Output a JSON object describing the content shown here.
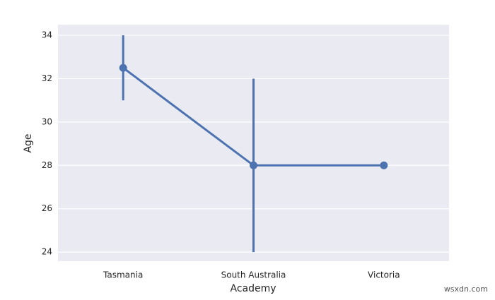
{
  "chart_data": {
    "type": "pointplot",
    "x_label": "Academy",
    "y_label": "Age",
    "categories": [
      "Tasmania",
      "South Australia",
      "Victoria"
    ],
    "values": [
      32.5,
      28,
      28
    ],
    "errors": [
      1.5,
      4,
      null
    ],
    "color": "#4c72b0",
    "ylim": [
      23.58,
      34.49
    ],
    "yticks": [
      24,
      26,
      28,
      30,
      32,
      34
    ],
    "grid": true
  },
  "watermark": "wsxdn.com"
}
